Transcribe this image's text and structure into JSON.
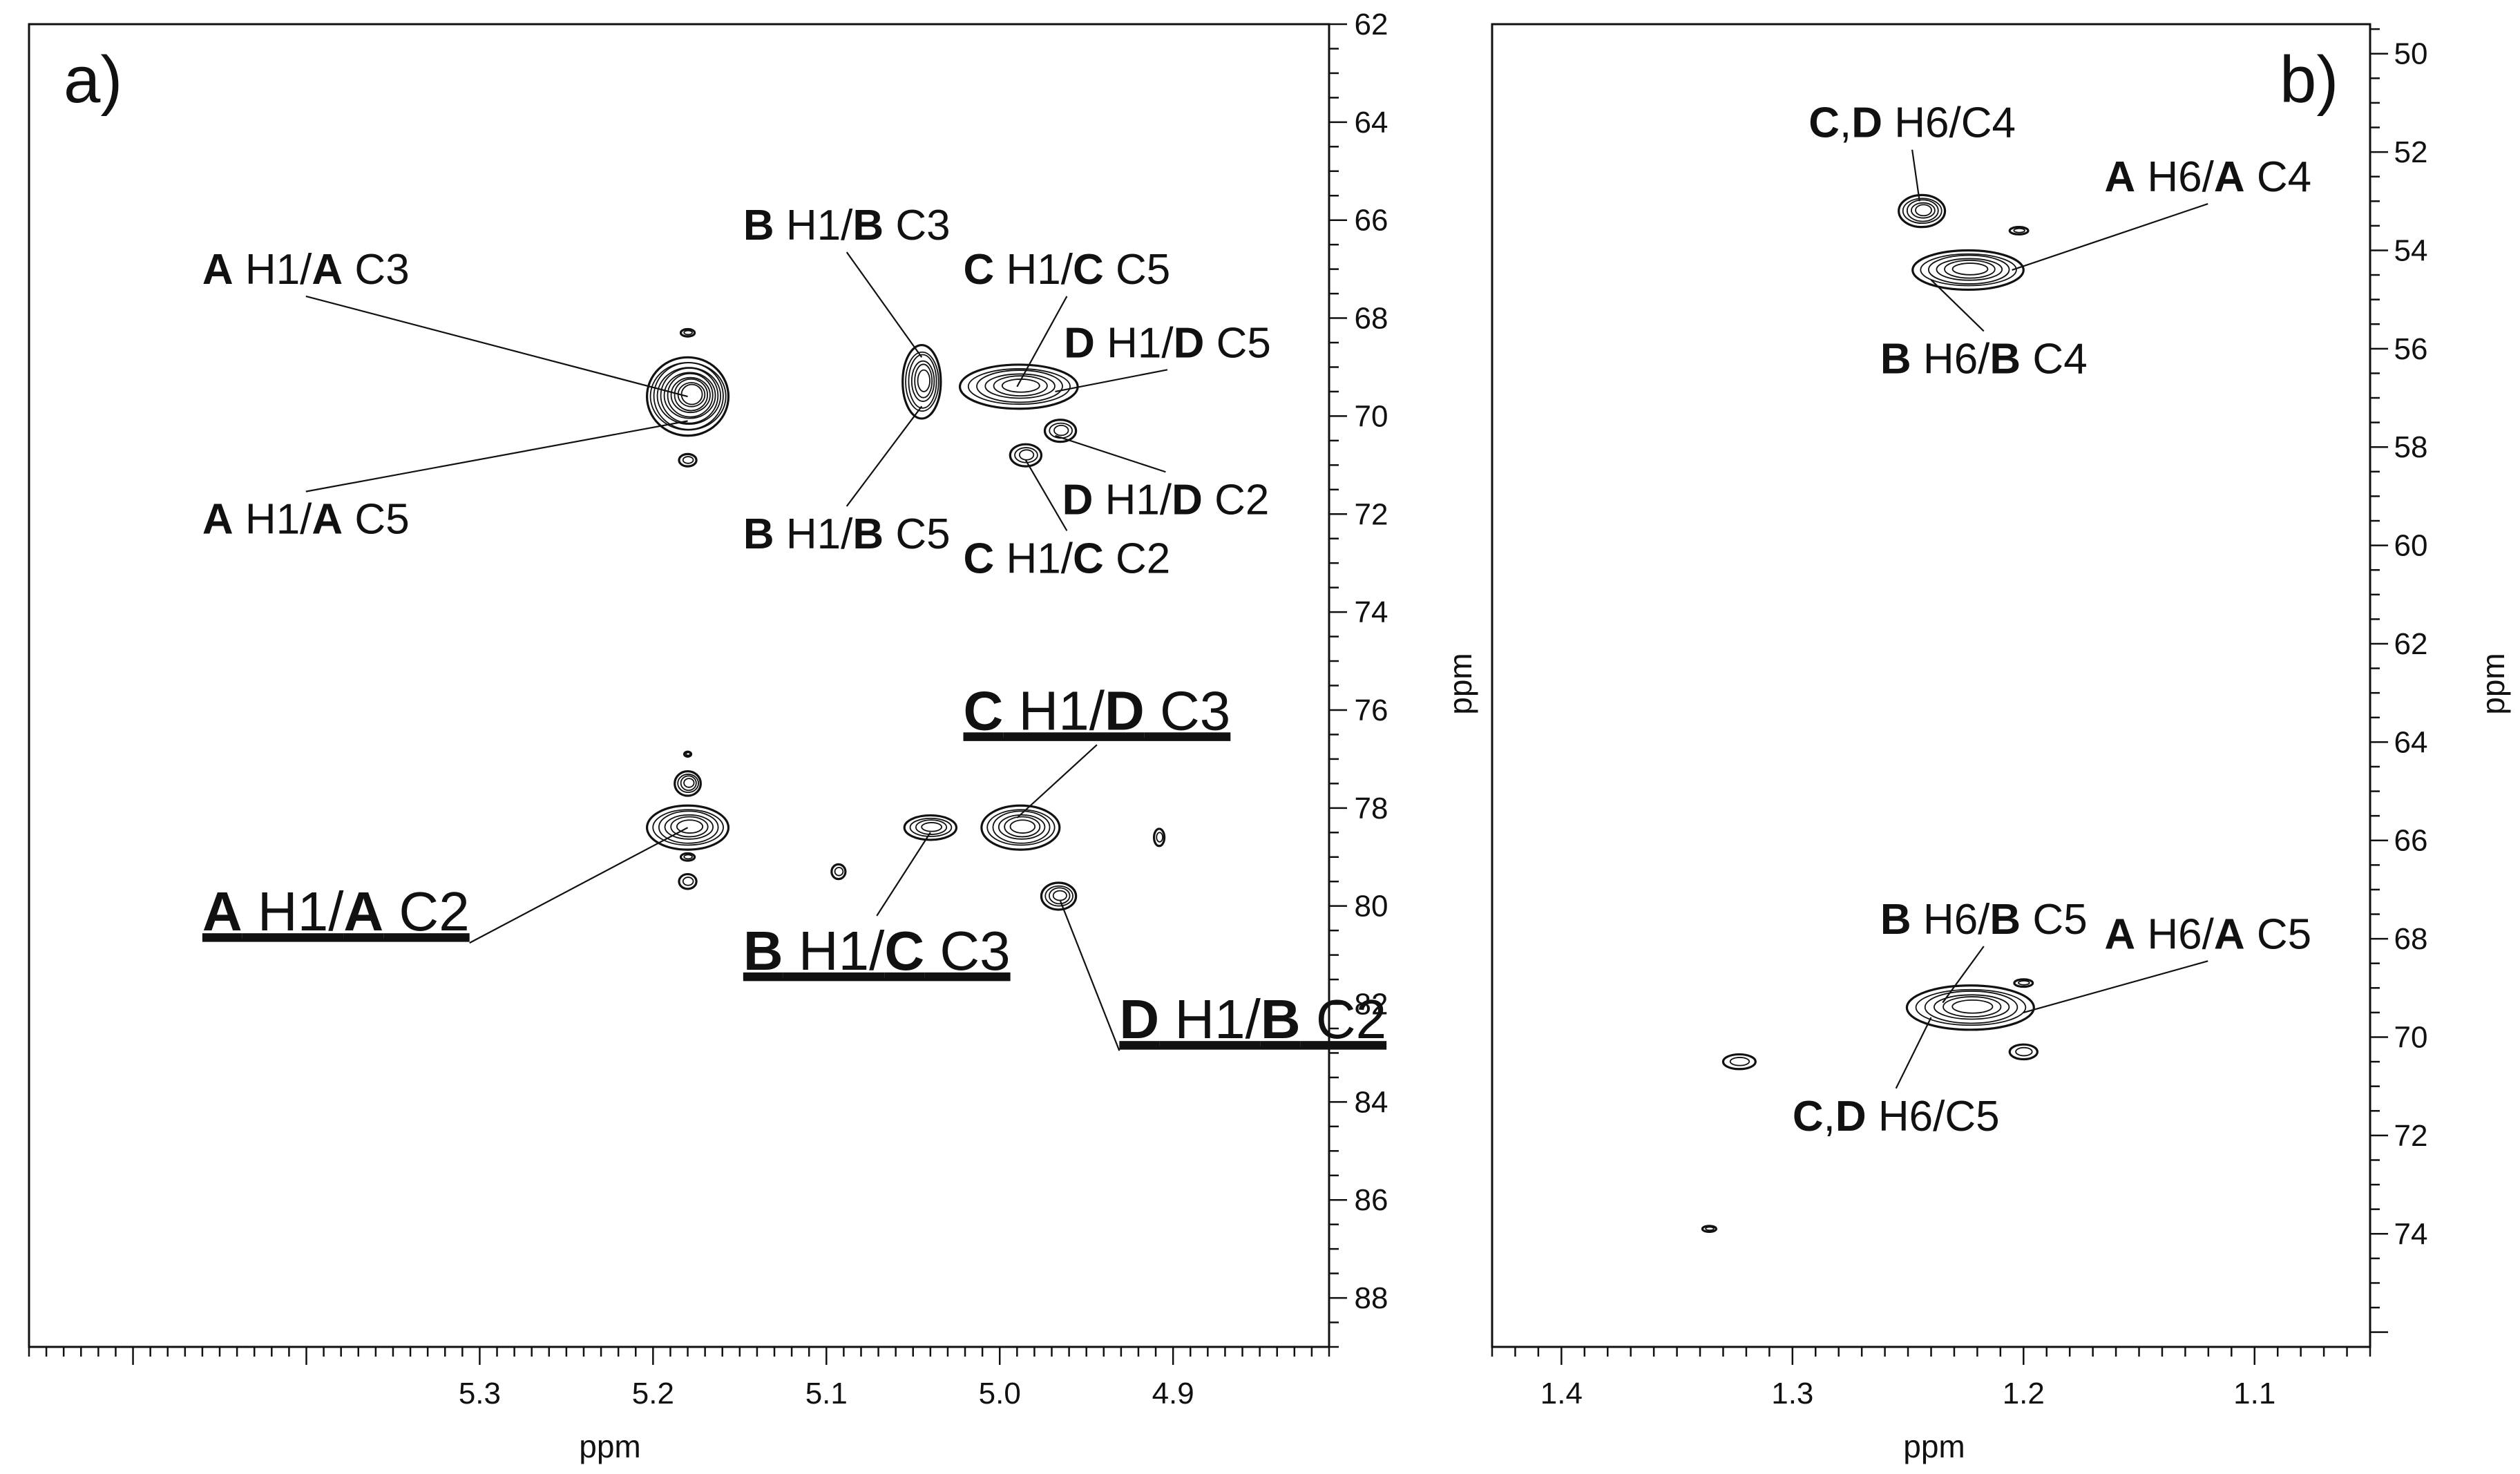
{
  "chart_data": [
    {
      "panel": "a)",
      "type": "contour",
      "xlabel": "ppm",
      "ylabel": "ppm",
      "xlim": [
        5.56,
        4.81
      ],
      "ylim": [
        62,
        89
      ],
      "xticks": [
        "5.3",
        "5.2",
        "5.1",
        "5.0",
        "4.9"
      ],
      "yticks": [
        "62",
        "64",
        "66",
        "68",
        "70",
        "72",
        "74",
        "76",
        "78",
        "80",
        "82",
        "84",
        "86",
        "88"
      ],
      "peaks": [
        {
          "x": 5.18,
          "y": 69.6,
          "w": 0.047,
          "h": 1.6
        },
        {
          "x": 5.18,
          "y": 70.9,
          "w": 0.01,
          "h": 0.25
        },
        {
          "x": 5.18,
          "y": 68.3,
          "w": 0.008,
          "h": 0.15
        },
        {
          "x": 5.045,
          "y": 69.3,
          "w": 0.022,
          "h": 1.5
        },
        {
          "x": 4.989,
          "y": 69.4,
          "w": 0.068,
          "h": 0.9
        },
        {
          "x": 4.985,
          "y": 70.8,
          "w": 0.018,
          "h": 0.45
        },
        {
          "x": 4.965,
          "y": 70.3,
          "w": 0.018,
          "h": 0.45
        },
        {
          "x": 5.18,
          "y": 78.4,
          "w": 0.047,
          "h": 0.9
        },
        {
          "x": 5.18,
          "y": 77.5,
          "w": 0.015,
          "h": 0.5
        },
        {
          "x": 5.18,
          "y": 79.5,
          "w": 0.01,
          "h": 0.3
        },
        {
          "x": 5.18,
          "y": 79.0,
          "w": 0.008,
          "h": 0.15
        },
        {
          "x": 5.18,
          "y": 76.9,
          "w": 0.004,
          "h": 0.1
        },
        {
          "x": 5.093,
          "y": 79.3,
          "w": 0.008,
          "h": 0.3
        },
        {
          "x": 5.04,
          "y": 78.4,
          "w": 0.03,
          "h": 0.5
        },
        {
          "x": 4.988,
          "y": 78.4,
          "w": 0.045,
          "h": 0.9
        },
        {
          "x": 4.966,
          "y": 79.8,
          "w": 0.02,
          "h": 0.55
        },
        {
          "x": 4.908,
          "y": 78.6,
          "w": 0.006,
          "h": 0.35
        }
      ],
      "annotations": [
        {
          "parts": [
            [
              "A",
              true
            ],
            [
              " H1/",
              false
            ],
            [
              "A",
              true
            ],
            [
              " C3",
              false
            ]
          ],
          "x": 5.46,
          "y": 67.3,
          "ax": 5.18,
          "ay": 69.6,
          "size": "small",
          "underline": false
        },
        {
          "parts": [
            [
              "A",
              true
            ],
            [
              " H1/",
              false
            ],
            [
              "A",
              true
            ],
            [
              " C5",
              false
            ]
          ],
          "x": 5.46,
          "y": 72.4,
          "ax": 5.18,
          "ay": 70.1,
          "size": "small",
          "underline": false
        },
        {
          "parts": [
            [
              "B",
              true
            ],
            [
              " H1/",
              false
            ],
            [
              "B",
              true
            ],
            [
              " C3",
              false
            ]
          ],
          "x": 5.148,
          "y": 66.4,
          "ax": 5.045,
          "ay": 68.8,
          "size": "small",
          "underline": false
        },
        {
          "parts": [
            [
              "B",
              true
            ],
            [
              " H1/",
              false
            ],
            [
              "B",
              true
            ],
            [
              " C5",
              false
            ]
          ],
          "x": 5.148,
          "y": 72.7,
          "ax": 5.045,
          "ay": 69.8,
          "size": "small",
          "underline": false
        },
        {
          "parts": [
            [
              "C",
              true
            ],
            [
              " H1/",
              false
            ],
            [
              "C",
              true
            ],
            [
              " C5",
              false
            ]
          ],
          "x": 5.021,
          "y": 67.3,
          "ax": 4.99,
          "ay": 69.4,
          "size": "small",
          "underline": false
        },
        {
          "parts": [
            [
              "D",
              true
            ],
            [
              " H1/",
              false
            ],
            [
              "D",
              true
            ],
            [
              " C5",
              false
            ]
          ],
          "x": 4.963,
          "y": 68.8,
          "ax": 4.968,
          "ay": 69.5,
          "size": "small",
          "underline": false
        },
        {
          "parts": [
            [
              "D",
              true
            ],
            [
              " H1/",
              false
            ],
            [
              "D",
              true
            ],
            [
              " C2",
              false
            ]
          ],
          "x": 4.964,
          "y": 72.0,
          "ax": 4.968,
          "ay": 70.4,
          "size": "small",
          "underline": false
        },
        {
          "parts": [
            [
              "C",
              true
            ],
            [
              " H1/",
              false
            ],
            [
              "C",
              true
            ],
            [
              " C2",
              false
            ]
          ],
          "x": 5.021,
          "y": 73.2,
          "ax": 4.985,
          "ay": 70.9,
          "size": "small",
          "underline": false
        },
        {
          "parts": [
            [
              "C",
              true
            ],
            [
              " H1/",
              false
            ],
            [
              "D",
              true
            ],
            [
              " C3",
              false
            ]
          ],
          "x": 5.021,
          "y": 76.4,
          "ax": 4.99,
          "ay": 78.2,
          "size": "large",
          "underline": true
        },
        {
          "parts": [
            [
              "A",
              true
            ],
            [
              " H1/",
              false
            ],
            [
              "A",
              true
            ],
            [
              " C2",
              false
            ]
          ],
          "x": 5.46,
          "y": 80.5,
          "ax": 5.18,
          "ay": 78.4,
          "size": "large",
          "underline": true
        },
        {
          "parts": [
            [
              "B",
              true
            ],
            [
              " H1/",
              false
            ],
            [
              "C",
              true
            ],
            [
              " C3",
              false
            ]
          ],
          "x": 5.148,
          "y": 81.3,
          "ax": 5.04,
          "ay": 78.5,
          "size": "large",
          "underline": true
        },
        {
          "parts": [
            [
              "D",
              true
            ],
            [
              " H1/",
              false
            ],
            [
              "B",
              true
            ],
            [
              " C2",
              false
            ]
          ],
          "x": 4.931,
          "y": 82.7,
          "ax": 4.965,
          "ay": 79.9,
          "size": "large",
          "underline": true
        }
      ]
    },
    {
      "panel": "b)",
      "type": "contour",
      "xlabel": "ppm",
      "ylabel": "ppm",
      "xlim": [
        1.43,
        1.05
      ],
      "ylim": [
        49.4,
        76.3
      ],
      "xticks": [
        "1.4",
        "1.3",
        "1.2",
        "1.1"
      ],
      "yticks": [
        "50",
        "52",
        "54",
        "56",
        "58",
        "60",
        "62",
        "64",
        "66",
        "68",
        "70",
        "72",
        "74"
      ],
      "peaks": [
        {
          "x": 1.244,
          "y": 53.2,
          "w": 0.02,
          "h": 0.65
        },
        {
          "x": 1.224,
          "y": 54.4,
          "w": 0.048,
          "h": 0.8
        },
        {
          "x": 1.202,
          "y": 53.6,
          "w": 0.008,
          "h": 0.15
        },
        {
          "x": 1.223,
          "y": 69.4,
          "w": 0.055,
          "h": 0.9
        },
        {
          "x": 1.2,
          "y": 68.9,
          "w": 0.008,
          "h": 0.15
        },
        {
          "x": 1.2,
          "y": 70.3,
          "w": 0.012,
          "h": 0.3
        },
        {
          "x": 1.323,
          "y": 70.5,
          "w": 0.014,
          "h": 0.3
        },
        {
          "x": 1.336,
          "y": 73.9,
          "w": 0.006,
          "h": 0.12
        }
      ],
      "annotations": [
        {
          "parts": [
            [
              "C",
              true
            ],
            [
              ",",
              false
            ],
            [
              "D",
              true
            ],
            [
              " H6/C4",
              false
            ]
          ],
          "x": 1.293,
          "y": 51.7,
          "ax": 1.245,
          "ay": 53.0,
          "size": "small",
          "underline": false
        },
        {
          "parts": [
            [
              "A",
              true
            ],
            [
              " H6/",
              false
            ],
            [
              "A",
              true
            ],
            [
              " C4",
              false
            ]
          ],
          "x": 1.165,
          "y": 52.8,
          "ax": 1.205,
          "ay": 54.4,
          "size": "small",
          "underline": false
        },
        {
          "parts": [
            [
              "B",
              true
            ],
            [
              " H6/",
              false
            ],
            [
              "B",
              true
            ],
            [
              " C4",
              false
            ]
          ],
          "x": 1.262,
          "y": 56.5,
          "ax": 1.24,
          "ay": 54.6,
          "size": "small",
          "underline": false
        },
        {
          "parts": [
            [
              "B",
              true
            ],
            [
              " H6/",
              false
            ],
            [
              "B",
              true
            ],
            [
              " C5",
              false
            ]
          ],
          "x": 1.262,
          "y": 67.9,
          "ax": 1.235,
          "ay": 69.3,
          "size": "small",
          "underline": false
        },
        {
          "parts": [
            [
              "A",
              true
            ],
            [
              " H6/",
              false
            ],
            [
              "A",
              true
            ],
            [
              " C5",
              false
            ]
          ],
          "x": 1.165,
          "y": 68.2,
          "ax": 1.2,
          "ay": 69.5,
          "size": "small",
          "underline": false
        },
        {
          "parts": [
            [
              "C",
              true
            ],
            [
              ",",
              false
            ],
            [
              "D",
              true
            ],
            [
              " H6/C5",
              false
            ]
          ],
          "x": 1.3,
          "y": 71.9,
          "ax": 1.24,
          "ay": 69.6,
          "size": "small",
          "underline": false
        }
      ]
    }
  ]
}
